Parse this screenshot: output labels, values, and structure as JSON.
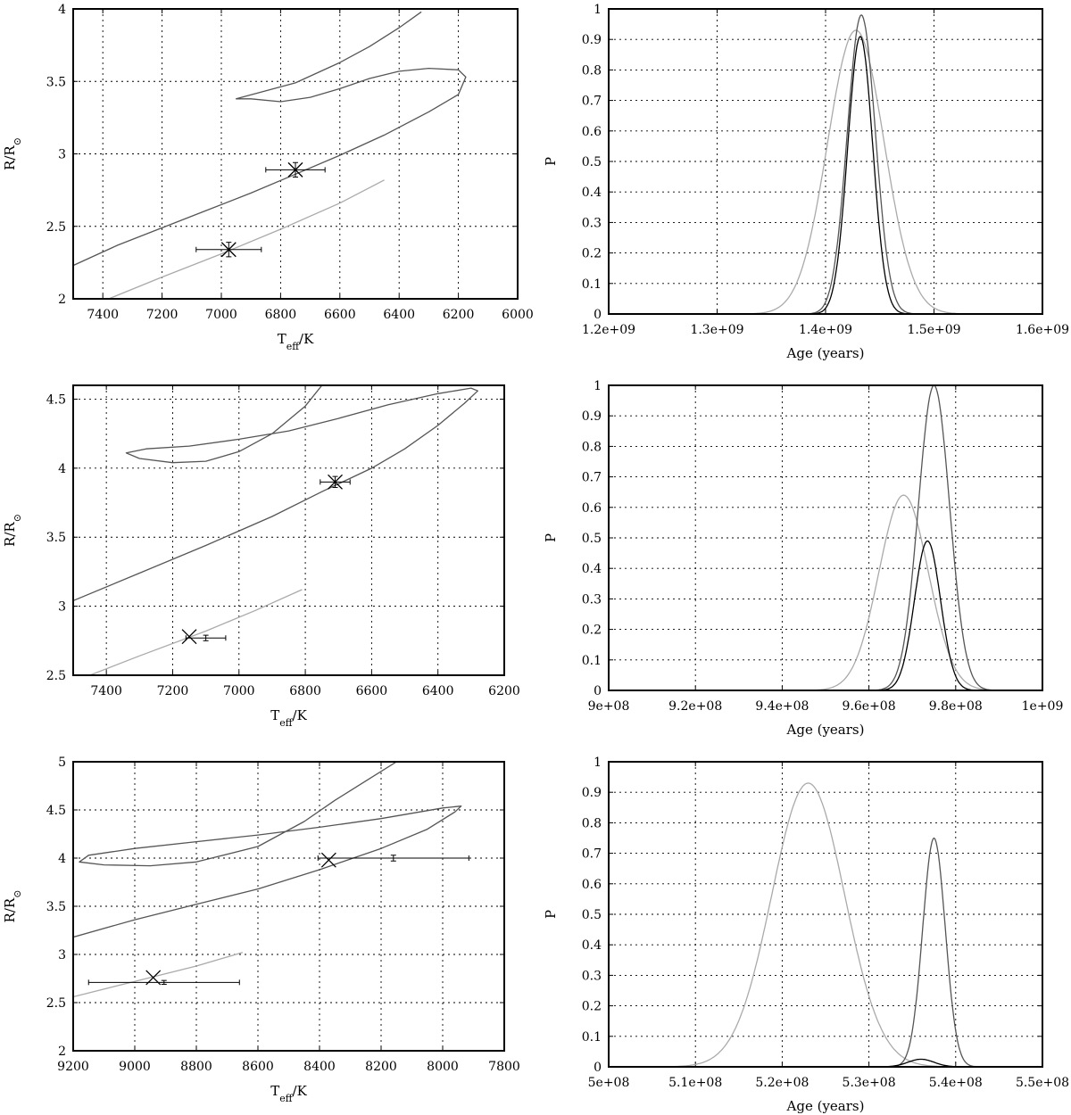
{
  "chart_data": [
    {
      "type": "line",
      "panel": "hr-top",
      "xlabel_main": "T",
      "xlabel_sub": "eff",
      "xlabel_rest": "/K",
      "ylabel_main": "R/R",
      "ylabel_sub": "⊙",
      "xlim": [
        7500,
        6000
      ],
      "ylim": [
        2,
        4
      ],
      "xticks": [
        7400,
        7200,
        7000,
        6800,
        6600,
        6400,
        6200,
        6000
      ],
      "yticks": [
        2,
        2.5,
        3,
        3.5,
        4
      ],
      "grid": true,
      "series": [
        {
          "name": "isochrone-primary",
          "color": "#555555",
          "x": [
            7500,
            7350,
            7200,
            7050,
            6900,
            6750,
            6600,
            6450,
            6300,
            6200,
            6175,
            6200,
            6300,
            6400,
            6500,
            6600,
            6700,
            6800,
            6900,
            6950,
            6750,
            6600,
            6500,
            6400,
            6325
          ],
          "y": [
            2.23,
            2.37,
            2.49,
            2.61,
            2.73,
            2.86,
            2.99,
            3.13,
            3.29,
            3.41,
            3.53,
            3.58,
            3.59,
            3.57,
            3.52,
            3.45,
            3.39,
            3.36,
            3.38,
            3.38,
            3.49,
            3.63,
            3.74,
            3.87,
            3.98
          ]
        },
        {
          "name": "isochrone-secondary",
          "color": "#aaaaaa",
          "x": [
            7380,
            7200,
            7000,
            6800,
            6600,
            6450
          ],
          "y": [
            2.0,
            2.15,
            2.31,
            2.48,
            2.66,
            2.82
          ]
        }
      ],
      "points": [
        {
          "name": "star-primary",
          "x": 6750,
          "y": 2.89,
          "xerr": 100,
          "yerr": 0.05
        },
        {
          "name": "star-secondary",
          "x": 6975,
          "y": 2.34,
          "xerr": 110,
          "yerr": 0.05
        }
      ]
    },
    {
      "type": "line",
      "panel": "prob-top",
      "xlabel": "Age (years)",
      "ylabel": "P",
      "xlim": [
        1200000000,
        1600000000
      ],
      "ylim": [
        0,
        1
      ],
      "xticks": [
        1200000000,
        1300000000,
        1400000000,
        1500000000,
        1600000000
      ],
      "xtick_labels": [
        "1.2e+09",
        "1.3e+09",
        "1.4e+09",
        "1.5e+09",
        "1.6e+09"
      ],
      "yticks": [
        0,
        0.1,
        0.2,
        0.3,
        0.4,
        0.5,
        0.6,
        0.7,
        0.8,
        0.9,
        1
      ],
      "ytick_labels": [
        "0",
        "0.1",
        "0.2",
        "0.3",
        "0.4",
        "0.5",
        "0.6",
        "0.7",
        "0.8",
        "0.9",
        "1"
      ],
      "grid": true,
      "series": [
        {
          "name": "combined",
          "color": "#aaaaaa",
          "gaussian": {
            "mu": 1428000000,
            "sigma": 26000000,
            "amp": 0.93
          }
        },
        {
          "name": "primary",
          "color": "#555555",
          "gaussian": {
            "mu": 1433000000,
            "sigma": 13000000,
            "amp": 0.98
          }
        },
        {
          "name": "secondary",
          "color": "#000000",
          "gaussian": {
            "mu": 1432000000,
            "sigma": 11500000,
            "amp": 0.91
          }
        }
      ]
    },
    {
      "type": "line",
      "panel": "hr-mid",
      "xlabel_main": "T",
      "xlabel_sub": "eff",
      "xlabel_rest": "/K",
      "ylabel_main": "R/R",
      "ylabel_sub": "⊙",
      "xlim": [
        7500,
        6200
      ],
      "ylim": [
        2.5,
        4.6
      ],
      "xticks": [
        7400,
        7200,
        7000,
        6800,
        6600,
        6400,
        6200
      ],
      "yticks": [
        2.5,
        3,
        3.5,
        4,
        4.5
      ],
      "grid": true,
      "series": [
        {
          "name": "isochrone-primary",
          "color": "#555555",
          "x": [
            7500,
            7300,
            7100,
            6900,
            6750,
            6600,
            6500,
            6400,
            6320,
            6280,
            6300,
            6400,
            6550,
            6700,
            6850,
            7000,
            7150,
            7280,
            7340,
            7300,
            7200,
            7100,
            7000,
            6900,
            6800,
            6750
          ],
          "y": [
            3.04,
            3.24,
            3.44,
            3.65,
            3.83,
            4.0,
            4.14,
            4.31,
            4.47,
            4.56,
            4.58,
            4.54,
            4.46,
            4.36,
            4.27,
            4.21,
            4.16,
            4.14,
            4.11,
            4.07,
            4.04,
            4.05,
            4.12,
            4.25,
            4.45,
            4.6
          ]
        },
        {
          "name": "isochrone-secondary",
          "color": "#aaaaaa",
          "x": [
            7450,
            7300,
            7100,
            6950,
            6810
          ],
          "y": [
            2.5,
            2.64,
            2.82,
            2.97,
            3.12
          ]
        }
      ],
      "points": [
        {
          "name": "star-primary",
          "x": 6710,
          "y": 3.9,
          "xerr": 45,
          "yerr": 0.04
        },
        {
          "name": "star-secondary",
          "x": 7150,
          "y": 2.78,
          "xerr": 0,
          "yerr": 0
        },
        {
          "name": "star-secondary-model",
          "x": 7100,
          "y": 2.77,
          "xerr": 60,
          "yerr": 0.02
        }
      ]
    },
    {
      "type": "line",
      "panel": "prob-mid",
      "xlabel": "Age (years)",
      "ylabel": "P",
      "xlim": [
        900000000,
        1000000000
      ],
      "ylim": [
        0,
        1
      ],
      "xticks": [
        900000000,
        920000000,
        940000000,
        960000000,
        980000000,
        1000000000
      ],
      "xtick_labels": [
        "9e+08",
        "9.2e+08",
        "9.4e+08",
        "9.6e+08",
        "9.8e+08",
        "1e+09"
      ],
      "yticks": [
        0,
        0.1,
        0.2,
        0.3,
        0.4,
        0.5,
        0.6,
        0.7,
        0.8,
        0.9,
        1
      ],
      "ytick_labels": [
        "0",
        "0.1",
        "0.2",
        "0.3",
        "0.4",
        "0.5",
        "0.6",
        "0.7",
        "0.8",
        "0.9",
        "1"
      ],
      "grid": true,
      "series": [
        {
          "name": "combined",
          "color": "#aaaaaa",
          "gaussian": {
            "mu": 968000000,
            "sigma": 5700000,
            "amp": 0.64
          }
        },
        {
          "name": "primary",
          "color": "#555555",
          "gaussian": {
            "mu": 975000000,
            "sigma": 3600000,
            "amp": 1.0
          }
        },
        {
          "name": "secondary",
          "color": "#000000",
          "gaussian": {
            "mu": 973500000,
            "sigma": 3000000,
            "amp": 0.49
          }
        }
      ]
    },
    {
      "type": "line",
      "panel": "hr-bot",
      "xlabel_main": "T",
      "xlabel_sub": "eff",
      "xlabel_rest": "/K",
      "ylabel_main": "R/R",
      "ylabel_sub": "⊙",
      "xlim": [
        9200,
        7800
      ],
      "ylim": [
        2,
        5
      ],
      "xticks": [
        9200,
        9000,
        8800,
        8600,
        8400,
        8200,
        8000,
        7800
      ],
      "yticks": [
        2,
        2.5,
        3,
        3.5,
        4,
        4.5,
        5
      ],
      "grid": true,
      "series": [
        {
          "name": "isochrone-primary",
          "color": "#555555",
          "x": [
            9200,
            9000,
            8800,
            8600,
            8400,
            8200,
            8050,
            7960,
            7940,
            8000,
            8200,
            8400,
            8600,
            8800,
            9000,
            9150,
            9180,
            9100,
            8950,
            8800,
            8600,
            8450,
            8350,
            8250,
            8150
          ],
          "y": [
            3.18,
            3.36,
            3.52,
            3.68,
            3.88,
            4.1,
            4.3,
            4.48,
            4.54,
            4.52,
            4.41,
            4.32,
            4.24,
            4.17,
            4.1,
            4.03,
            3.96,
            3.93,
            3.92,
            3.96,
            4.12,
            4.38,
            4.6,
            4.8,
            5.0
          ]
        },
        {
          "name": "isochrone-secondary",
          "color": "#aaaaaa",
          "x": [
            9200,
            9000,
            8800,
            8650
          ],
          "y": [
            2.56,
            2.72,
            2.88,
            3.02
          ]
        }
      ],
      "points": [
        {
          "name": "star-primary",
          "x": 8370,
          "y": 3.98,
          "xerr": 0,
          "yerr": 0
        },
        {
          "name": "star-primary-model",
          "x": 8160,
          "y": 4.0,
          "xerr": 245,
          "yerr": 0.03
        },
        {
          "name": "star-secondary",
          "x": 8940,
          "y": 2.76,
          "xerr": 0,
          "yerr": 0
        },
        {
          "name": "star-secondary-model",
          "x": 8905,
          "y": 2.71,
          "xerr": 245,
          "yerr": 0.02
        }
      ]
    },
    {
      "type": "line",
      "panel": "prob-bot",
      "xlabel": "Age (years)",
      "ylabel": "P",
      "xlim": [
        500000000,
        550000000
      ],
      "ylim": [
        0,
        1
      ],
      "xticks": [
        500000000,
        510000000,
        520000000,
        530000000,
        540000000,
        550000000
      ],
      "xtick_labels": [
        "5e+08",
        "5.1e+08",
        "5.2e+08",
        "5.3e+08",
        "5.4e+08",
        "5.5e+08"
      ],
      "yticks": [
        0,
        0.1,
        0.2,
        0.3,
        0.4,
        0.5,
        0.6,
        0.7,
        0.8,
        0.9,
        1
      ],
      "ytick_labels": [
        "0",
        "0.1",
        "0.2",
        "0.3",
        "0.4",
        "0.5",
        "0.6",
        "0.7",
        "0.8",
        "0.9",
        "1"
      ],
      "grid": true,
      "series": [
        {
          "name": "combined",
          "color": "#aaaaaa",
          "gaussian": {
            "mu": 523000000,
            "sigma": 4200000,
            "amp": 0.93
          }
        },
        {
          "name": "primary",
          "color": "#555555",
          "gaussian": {
            "mu": 537500000,
            "sigma": 1300000,
            "amp": 0.75
          }
        },
        {
          "name": "secondary",
          "color": "#000000",
          "gaussian": {
            "mu": 536000000,
            "sigma": 1500000,
            "amp": 0.025
          }
        }
      ]
    }
  ]
}
